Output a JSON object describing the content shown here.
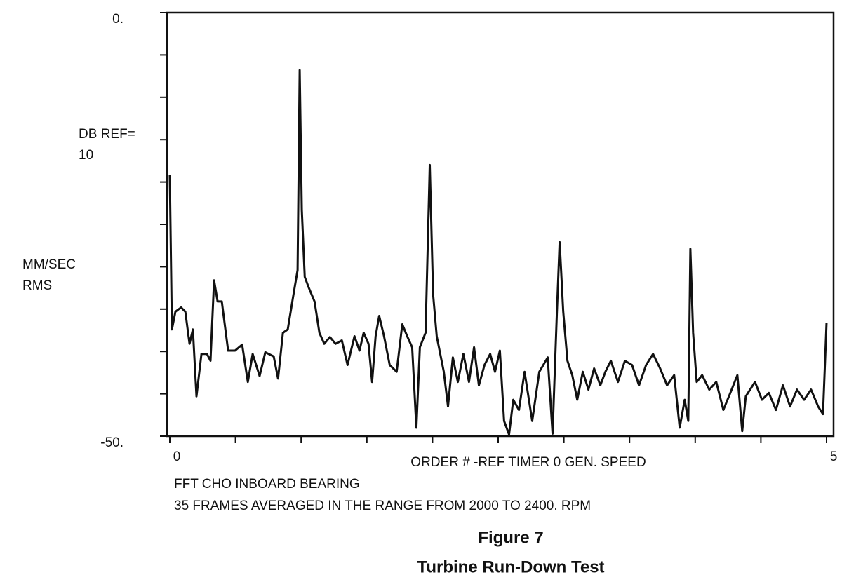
{
  "chart_data": {
    "type": "line",
    "ylabel": [
      "DB REF=",
      "10",
      "MM/SEC",
      "RMS"
    ],
    "xlabel": "ORDER # -REF TIMER 0 GEN. SPEED",
    "notes": [
      "FFT CHO INBOARD BEARING",
      "35 FRAMES AVERAGED IN THE RANGE FROM  2000 TO 2400. RPM"
    ],
    "caption": [
      "Figure 7",
      "Turbine Run-Down Test"
    ],
    "color": "#111111",
    "xlim": [
      0,
      5
    ],
    "ylim": [
      -50,
      0
    ],
    "xticks": [
      0,
      5
    ],
    "xminor_ticks": [
      0.5,
      1,
      1.5,
      2,
      2.5,
      3,
      3.5,
      4,
      4.5
    ],
    "yticks": [
      {
        "value": 0,
        "label": "0."
      },
      {
        "value": -50,
        "label": "-50."
      }
    ],
    "yminor_ticks": [
      -5,
      -10,
      -15,
      -20,
      -25,
      -30,
      -35,
      -40,
      -45
    ],
    "x": [
      0,
      0.016,
      0.043,
      0.086,
      0.118,
      0.15,
      0.176,
      0.203,
      0.241,
      0.283,
      0.31,
      0.337,
      0.364,
      0.396,
      0.444,
      0.497,
      0.551,
      0.594,
      0.631,
      0.684,
      0.727,
      0.791,
      0.824,
      0.861,
      0.898,
      0.941,
      0.973,
      0.989,
      1.005,
      1.027,
      1.059,
      1.102,
      1.139,
      1.176,
      1.219,
      1.262,
      1.31,
      1.353,
      1.406,
      1.444,
      1.476,
      1.513,
      1.54,
      1.567,
      1.594,
      1.631,
      1.674,
      1.727,
      1.77,
      1.807,
      1.845,
      1.877,
      1.904,
      1.947,
      1.979,
      2.005,
      2.032,
      2.086,
      2.118,
      2.155,
      2.193,
      2.235,
      2.278,
      2.316,
      2.353,
      2.396,
      2.439,
      2.476,
      2.513,
      2.545,
      2.583,
      2.615,
      2.658,
      2.701,
      2.759,
      2.813,
      2.877,
      2.914,
      2.947,
      2.968,
      2.995,
      3.027,
      3.064,
      3.102,
      3.144,
      3.187,
      3.23,
      3.278,
      3.316,
      3.358,
      3.412,
      3.465,
      3.519,
      3.572,
      3.626,
      3.679,
      3.733,
      3.786,
      3.84,
      3.882,
      3.92,
      3.947,
      3.963,
      3.984,
      4.011,
      4.053,
      4.107,
      4.16,
      4.214,
      4.267,
      4.321,
      4.358,
      4.385,
      4.455,
      4.508,
      4.561,
      4.615,
      4.668,
      4.722,
      4.775,
      4.829,
      4.882,
      4.936,
      4.973,
      5
    ],
    "values": [
      -19.2,
      -37.4,
      -35.3,
      -34.8,
      -35.3,
      -39.1,
      -37.4,
      -45.3,
      -40.3,
      -40.3,
      -41.1,
      -31.6,
      -34.1,
      -34.1,
      -39.9,
      -39.9,
      -39.2,
      -43.6,
      -40.3,
      -42.9,
      -40.1,
      -40.6,
      -43.2,
      -37.8,
      -37.4,
      -33.3,
      -30.4,
      -6.8,
      -23.3,
      -31.2,
      -32.5,
      -34.1,
      -37.8,
      -39.1,
      -38.3,
      -39.1,
      -38.7,
      -41.6,
      -38.2,
      -39.9,
      -37.8,
      -39.1,
      -43.6,
      -38.2,
      -35.8,
      -38.2,
      -41.6,
      -42.4,
      -36.8,
      -38.2,
      -39.5,
      -49,
      -39.5,
      -37.8,
      -18,
      -33.3,
      -38.2,
      -42.4,
      -46.5,
      -40.7,
      -43.6,
      -40.3,
      -43.6,
      -39.5,
      -44,
      -41.6,
      -40.3,
      -42.4,
      -39.9,
      -48.2,
      -49.8,
      -45.7,
      -46.9,
      -42.4,
      -48.2,
      -42.4,
      -40.7,
      -49.7,
      -35.3,
      -27.1,
      -35.3,
      -41.1,
      -42.8,
      -45.7,
      -42.4,
      -44.5,
      -42,
      -44,
      -42.4,
      -41.1,
      -43.6,
      -41.1,
      -41.6,
      -44,
      -41.6,
      -40.3,
      -42,
      -44,
      -42.8,
      -49,
      -45.7,
      -48.2,
      -27.9,
      -37.8,
      -43.6,
      -42.8,
      -44.5,
      -43.6,
      -46.9,
      -44.9,
      -42.8,
      -49.4,
      -45.3,
      -43.6,
      -45.7,
      -44.9,
      -46.9,
      -44,
      -46.5,
      -44.5,
      -45.7,
      -44.5,
      -46.5,
      -47.4,
      -36.6
    ]
  }
}
